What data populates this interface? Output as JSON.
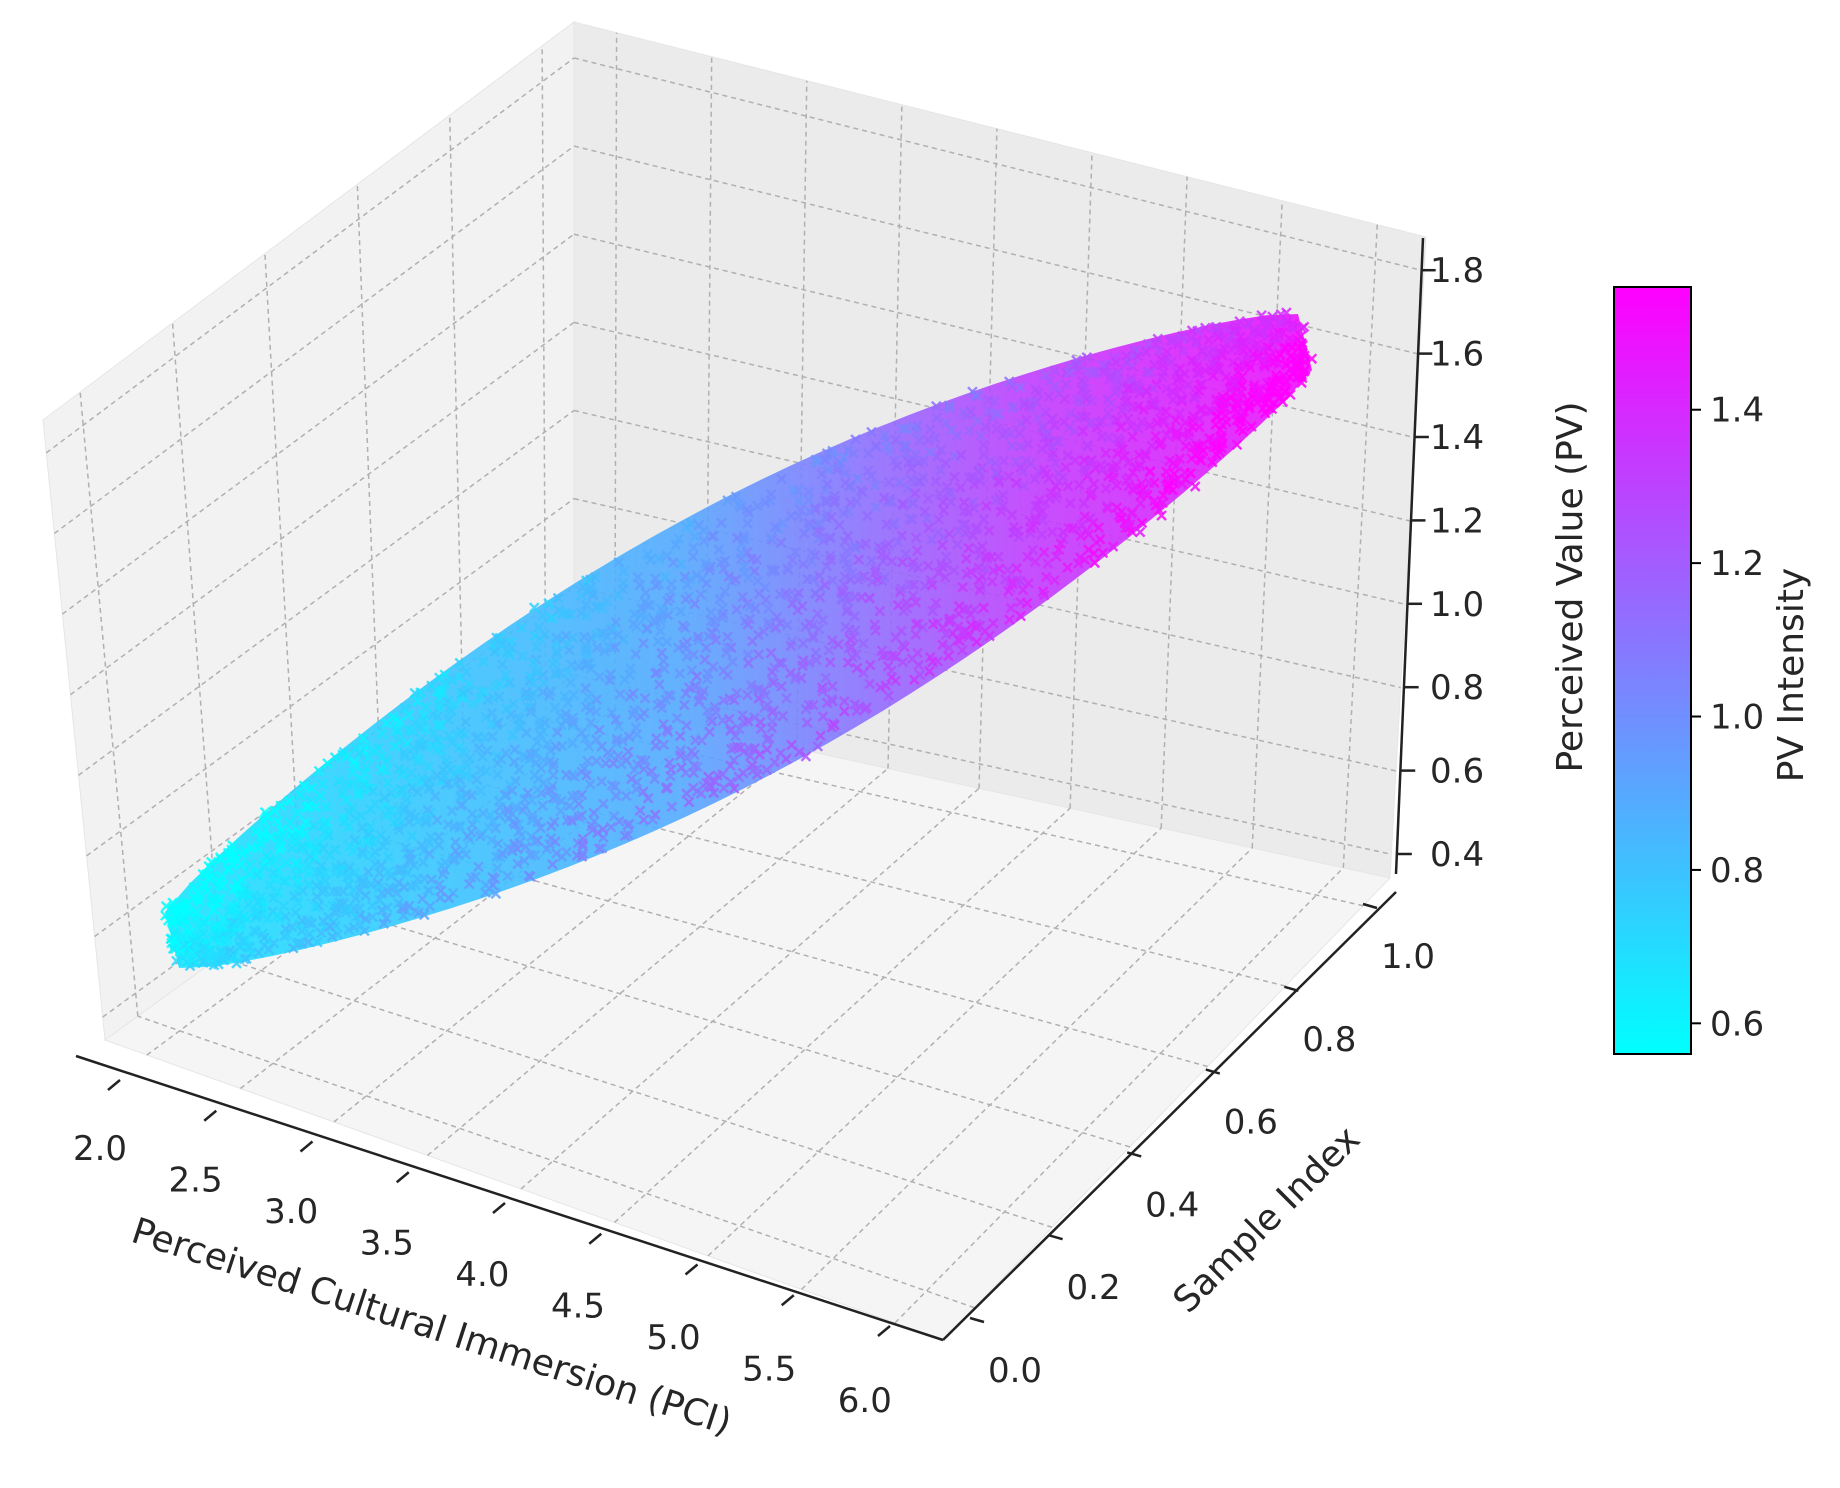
{
  "chart_data": {
    "type": "scatter",
    "projection": "3d",
    "marker": "x",
    "colormap": "cool",
    "colormap_colors": [
      "#00ffff",
      "#ff00ff"
    ],
    "pane_color": "#f2f2f2",
    "grid": true,
    "x": {
      "label": "Perceived Cultural Immersion (PCI)",
      "ticks": [
        "2.0",
        "2.5",
        "3.0",
        "3.5",
        "4.0",
        "4.5",
        "5.0",
        "5.5",
        "6.0"
      ],
      "range": [
        1.9,
        6.2
      ]
    },
    "y": {
      "label": "Sample Index",
      "ticks": [
        "0.0",
        "0.2",
        "0.4",
        "0.6",
        "0.8",
        "1.0"
      ],
      "range": [
        -0.05,
        1.05
      ]
    },
    "z": {
      "label": "Perceived Value (PV)",
      "ticks": [
        "0.4",
        "0.6",
        "0.8",
        "1.0",
        "1.2",
        "1.4",
        "1.6",
        "1.8"
      ],
      "range": [
        0.35,
        1.85
      ]
    },
    "colorbar": {
      "label": "PV Intensity",
      "ticks": [
        "0.6",
        "0.8",
        "1.0",
        "1.2",
        "1.4"
      ],
      "range": [
        0.56,
        1.56
      ],
      "placement": "right"
    },
    "trend": {
      "description_of_data": "dense point cloud, PV rising roughly linearly with PCI",
      "pci": [
        2.0,
        3.0,
        4.0,
        5.0,
        6.0
      ],
      "pv_approx": [
        0.6,
        0.85,
        1.05,
        1.3,
        1.55
      ]
    }
  }
}
